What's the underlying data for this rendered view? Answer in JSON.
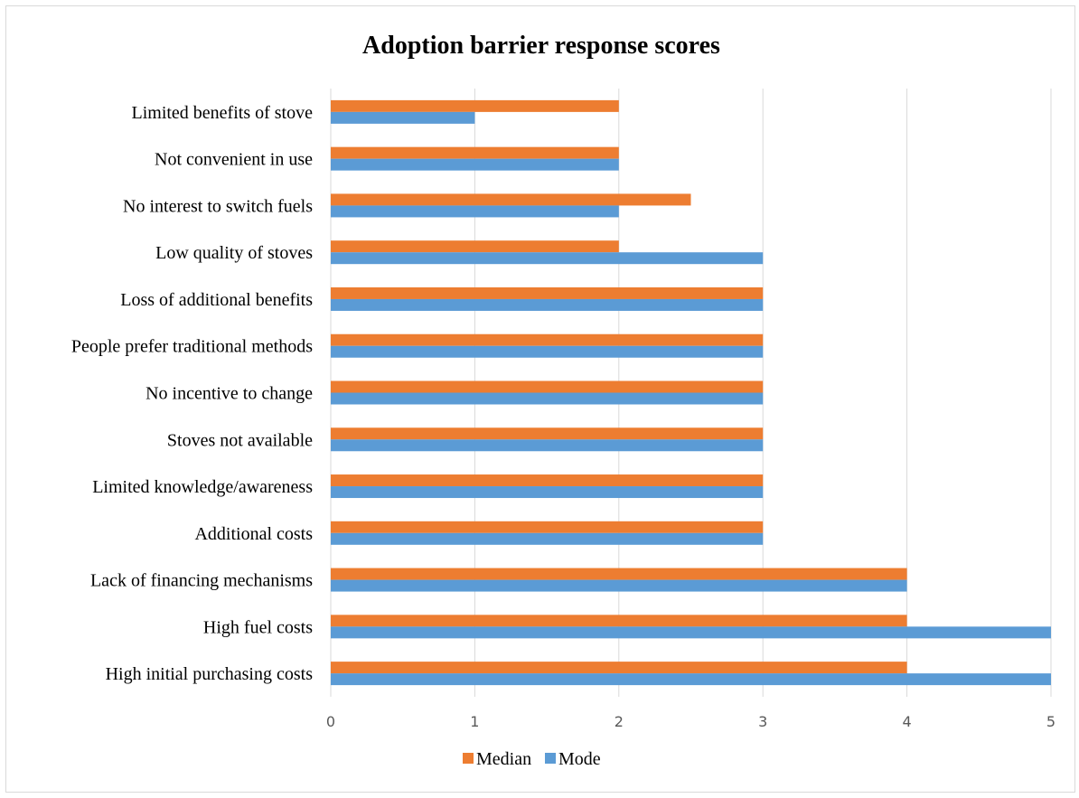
{
  "chart_data": {
    "type": "bar",
    "orientation": "horizontal",
    "title": "Adoption barrier response scores",
    "xlabel": "",
    "ylabel": "",
    "xlim": [
      0,
      5
    ],
    "xticks": [
      0,
      1,
      2,
      3,
      4,
      5
    ],
    "grid": true,
    "legend_position": "bottom",
    "categories": [
      "Limited benefits of stove",
      "Not convenient in use",
      "No interest to switch fuels",
      "Low quality of stoves",
      "Loss of additional benefits",
      "People prefer traditional methods",
      "No incentive to change",
      "Stoves not available",
      "Limited knowledge/awareness",
      "Additional costs",
      "Lack of financing mechanisms",
      "High fuel costs",
      "High initial purchasing costs"
    ],
    "series": [
      {
        "name": "Median",
        "color": "#ED7D31",
        "values": [
          2,
          2,
          2.5,
          2,
          3,
          3,
          3,
          3,
          3,
          3,
          4,
          4,
          4
        ]
      },
      {
        "name": "Mode",
        "color": "#5B9BD5",
        "values": [
          1,
          2,
          2,
          3,
          3,
          3,
          3,
          3,
          3,
          3,
          4,
          5,
          5
        ]
      }
    ]
  }
}
